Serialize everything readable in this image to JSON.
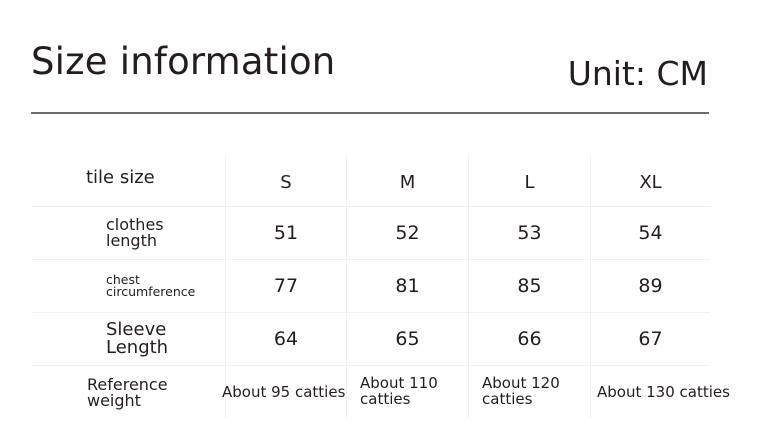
{
  "header": {
    "title": "Size information",
    "unit": "Unit: CM"
  },
  "table": {
    "corner_label": "tile size",
    "sizes": [
      "S",
      "M",
      "L",
      "XL"
    ],
    "rows": [
      {
        "label_lines": [
          "clothes",
          "length"
        ],
        "values": [
          "51",
          "52",
          "53",
          "54"
        ]
      },
      {
        "label_lines": [
          "chest",
          "circumference"
        ],
        "values": [
          "77",
          "81",
          "85",
          "89"
        ]
      },
      {
        "label_lines": [
          "Sleeve",
          "Length"
        ],
        "values": [
          "64",
          "65",
          "66",
          "67"
        ]
      },
      {
        "label_lines": [
          "Reference",
          "weight"
        ],
        "values": [
          "About 95 catties",
          "About 110 catties",
          "About 120 catties",
          "About 130 catties"
        ],
        "value_lines": [
          [
            "About 95 catties"
          ],
          [
            "About 110",
            "catties"
          ],
          [
            "About 120",
            "catties"
          ],
          [
            "About 130 catties"
          ]
        ]
      }
    ]
  },
  "colors": {
    "text": "#241d20",
    "rule": "#6f6a6c",
    "grid": "#f0f0f0",
    "background": "#ffffff"
  }
}
